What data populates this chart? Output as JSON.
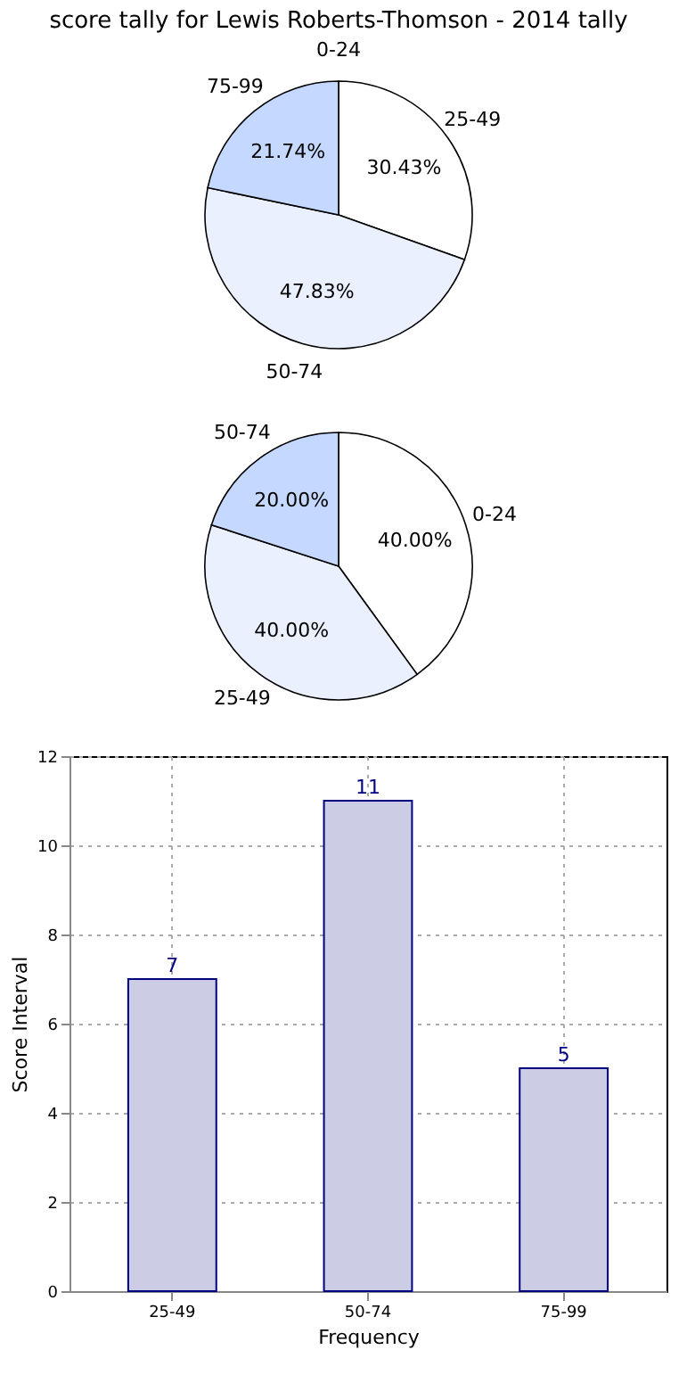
{
  "chart_data": [
    {
      "type": "pie",
      "title": "score tally for Lewis Roberts-Thomson - 2014 tally",
      "categories": [
        "0-24",
        "25-49",
        "50-74",
        "75-99"
      ],
      "values": [
        0,
        30.43,
        47.83,
        21.74
      ],
      "value_labels": [
        null,
        "30.43%",
        "47.83%",
        "21.74%"
      ],
      "colors": [
        "#ffffff",
        "#ffffff",
        "#eaf0fe",
        "#c5d8ff"
      ]
    },
    {
      "type": "pie",
      "categories": [
        "0-24",
        "25-49",
        "50-74"
      ],
      "values": [
        40,
        40,
        20
      ],
      "value_labels": [
        "40.00%",
        "40.00%",
        "20.00%"
      ],
      "colors": [
        "#ffffff",
        "#eaf0fe",
        "#c5d8ff"
      ]
    },
    {
      "type": "bar",
      "categories": [
        "25-49",
        "50-74",
        "75-99"
      ],
      "values": [
        7,
        11,
        5
      ],
      "color": "#cccce4",
      "xlabel": "Frequency",
      "ylabel": "Score Interval",
      "ylim": [
        0,
        12
      ],
      "yticks": [
        0,
        2,
        4,
        6,
        8,
        10,
        12
      ],
      "grid": true,
      "data_labels": true
    }
  ]
}
